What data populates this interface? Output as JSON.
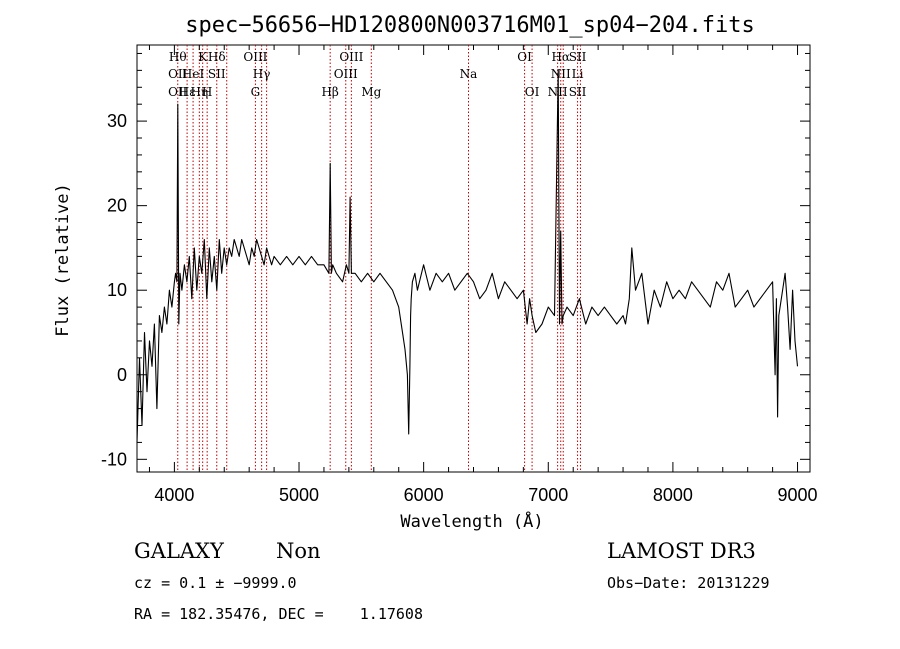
{
  "chart_data": {
    "type": "line",
    "title": "spec−56656−HD120800N003716M01_sp04−204.fits",
    "xlabel": "Wavelength (Å)",
    "ylabel": "Flux (relative)",
    "xlim": [
      3700,
      9100
    ],
    "ylim": [
      -11.5,
      39
    ],
    "xticks": [
      4000,
      5000,
      6000,
      7000,
      8000,
      9000
    ],
    "yticks": [
      -10,
      0,
      10,
      20,
      30
    ],
    "grid": false,
    "series": [
      {
        "color": "#000000",
        "x": [
          3700,
          3720,
          3740,
          3760,
          3780,
          3800,
          3820,
          3840,
          3860,
          3880,
          3900,
          3920,
          3940,
          3960,
          3980,
          4000,
          4010,
          4020,
          4027,
          4035,
          4045,
          4060,
          4080,
          4100,
          4120,
          4140,
          4160,
          4180,
          4200,
          4220,
          4240,
          4260,
          4280,
          4300,
          4320,
          4340,
          4360,
          4380,
          4400,
          4420,
          4440,
          4460,
          4480,
          4500,
          4520,
          4540,
          4560,
          4580,
          4600,
          4620,
          4640,
          4660,
          4680,
          4700,
          4720,
          4740,
          4760,
          4780,
          4800,
          4850,
          4900,
          4950,
          5000,
          5050,
          5100,
          5150,
          5200,
          5240,
          5250,
          5260,
          5270,
          5300,
          5350,
          5380,
          5400,
          5410,
          5420,
          5450,
          5500,
          5550,
          5600,
          5650,
          5700,
          5750,
          5800,
          5830,
          5850,
          5870,
          5880,
          5890,
          5895,
          5900,
          5910,
          5930,
          5950,
          6000,
          6050,
          6100,
          6150,
          6200,
          6250,
          6300,
          6350,
          6400,
          6450,
          6500,
          6550,
          6600,
          6650,
          6700,
          6750,
          6800,
          6830,
          6850,
          6870,
          6900,
          6950,
          7000,
          7050,
          7080,
          7090,
          7100,
          7110,
          7120,
          7150,
          7200,
          7250,
          7300,
          7350,
          7400,
          7450,
          7500,
          7550,
          7600,
          7620,
          7650,
          7670,
          7700,
          7750,
          7800,
          7850,
          7900,
          7950,
          8000,
          8050,
          8100,
          8150,
          8200,
          8250,
          8300,
          8350,
          8400,
          8450,
          8500,
          8550,
          8600,
          8650,
          8700,
          8750,
          8800,
          8820,
          8830,
          8840,
          8850,
          8880,
          8900,
          8920,
          8940,
          8960,
          8980,
          9000
        ],
        "y": [
          -8,
          2,
          -6,
          5,
          -2,
          4,
          1,
          6,
          -4,
          7,
          5,
          8,
          6,
          10,
          8,
          11,
          12,
          11,
          32,
          6,
          12,
          10,
          13,
          11,
          14,
          9,
          15,
          10,
          14,
          12,
          16,
          9,
          15,
          11,
          14,
          10,
          16,
          12,
          15,
          13,
          15,
          14,
          16,
          15,
          14,
          16,
          15,
          14,
          13,
          15,
          14,
          16,
          15,
          14,
          13,
          15,
          14,
          13,
          14,
          13,
          14,
          13,
          14,
          13,
          14,
          13,
          13,
          12,
          25,
          12,
          13,
          12,
          11,
          13,
          12,
          21,
          12,
          12,
          11,
          12,
          11,
          12,
          11,
          10,
          8,
          5,
          3,
          0,
          -7,
          1,
          7,
          9,
          11,
          12,
          10,
          13,
          10,
          12,
          11,
          12,
          10,
          11,
          12,
          11,
          9,
          10,
          12,
          9,
          11,
          10,
          9,
          10,
          6,
          9,
          7,
          5,
          6,
          8,
          7,
          36,
          6,
          17,
          6,
          7,
          8,
          7,
          9,
          6,
          8,
          7,
          8,
          7,
          6,
          7,
          6,
          9,
          15,
          10,
          12,
          6,
          10,
          8,
          11,
          9,
          10,
          9,
          11,
          10,
          9,
          8,
          11,
          10,
          12,
          8,
          9,
          10,
          8,
          9,
          10,
          11,
          0,
          9,
          -5,
          7,
          10,
          12,
          8,
          3,
          10,
          4,
          1
        ]
      }
    ],
    "lines": [
      {
        "x": 4027,
        "labels": [
          "Hθ",
          "OII",
          "OII"
        ]
      },
      {
        "x": 4102,
        "labels": [
          "",
          "",
          "Hε"
        ]
      },
      {
        "x": 4150,
        "labels": [
          "",
          "HeI",
          ""
        ]
      },
      {
        "x": 4200,
        "labels": [
          "",
          "",
          "Hη"
        ]
      },
      {
        "x": 4227,
        "labels": [
          "K",
          "",
          ""
        ]
      },
      {
        "x": 4263,
        "labels": [
          "",
          "",
          "H"
        ]
      },
      {
        "x": 4340,
        "labels": [
          "Hδ",
          "SII",
          ""
        ]
      },
      {
        "x": 4420,
        "labels": [
          "",
          "",
          ""
        ]
      },
      {
        "x": 4650,
        "labels": [
          "OIII",
          "",
          "G"
        ]
      },
      {
        "x": 4700,
        "labels": [
          "",
          "Hγ",
          ""
        ]
      },
      {
        "x": 4740,
        "labels": [
          "",
          "",
          ""
        ]
      },
      {
        "x": 5250,
        "labels": [
          "",
          "",
          "Hβ"
        ]
      },
      {
        "x": 5375,
        "labels": [
          "",
          "OIII",
          ""
        ]
      },
      {
        "x": 5420,
        "labels": [
          "OIII",
          "",
          ""
        ]
      },
      {
        "x": 5580,
        "labels": [
          "",
          "",
          "Mg"
        ]
      },
      {
        "x": 6360,
        "labels": [
          "",
          "Na",
          ""
        ]
      },
      {
        "x": 6810,
        "labels": [
          "OI",
          "",
          ""
        ]
      },
      {
        "x": 6870,
        "labels": [
          "",
          "",
          "OI"
        ]
      },
      {
        "x": 7075,
        "labels": [
          "",
          "",
          "NII"
        ]
      },
      {
        "x": 7100,
        "labels": [
          "Hα",
          "NII",
          ""
        ]
      },
      {
        "x": 7120,
        "labels": [
          "",
          "",
          ""
        ]
      },
      {
        "x": 7235,
        "labels": [
          "SII",
          "Li",
          "SII"
        ]
      },
      {
        "x": 7258,
        "labels": [
          "",
          "",
          ""
        ]
      }
    ],
    "annotations": [
      {
        "text": "GALAXY"
      },
      {
        "text": "Non"
      },
      {
        "text": "LAMOST DR3"
      },
      {
        "text": "cz = 0.1 ± −9999.0"
      },
      {
        "text": "Obs−Date: 20131229"
      },
      {
        "text": "RA = 182.35476, DEC =    1.17608"
      }
    ]
  }
}
